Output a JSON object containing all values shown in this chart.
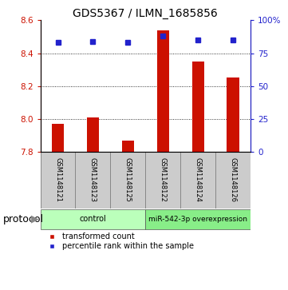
{
  "title": "GDS5367 / ILMN_1685856",
  "samples": [
    "GSM1148121",
    "GSM1148123",
    "GSM1148125",
    "GSM1148122",
    "GSM1148124",
    "GSM1148126"
  ],
  "transformed_count": [
    7.97,
    8.01,
    7.87,
    8.54,
    8.35,
    8.25
  ],
  "percentile_rank": [
    83,
    84,
    83,
    88,
    85,
    85
  ],
  "ylim_left": [
    7.8,
    8.6
  ],
  "ylim_right": [
    0,
    100
  ],
  "yticks_left": [
    7.8,
    8.0,
    8.2,
    8.4,
    8.6
  ],
  "yticks_right": [
    0,
    25,
    50,
    75,
    100
  ],
  "bar_color": "#cc1100",
  "dot_color": "#2222cc",
  "bar_bottom": 7.8,
  "bar_width": 0.35,
  "groups": [
    {
      "label": "control",
      "start": 0,
      "end": 3,
      "color": "#bbffbb"
    },
    {
      "label": "miR-542-3p overexpression",
      "start": 3,
      "end": 6,
      "color": "#88ee88"
    }
  ],
  "sample_box_color": "#cccccc",
  "sample_box_edge": "#888888",
  "title_fontsize": 10,
  "tick_fontsize": 7.5,
  "sample_fontsize": 6.0,
  "protocol_fontsize": 9,
  "group_fontsize": 7.0,
  "legend_fontsize": 7.0,
  "axis_color_left": "#cc1100",
  "axis_color_right": "#2222cc",
  "grid_color": "#000000",
  "protocol_label": "protocol",
  "legend_items": [
    {
      "color": "#cc1100",
      "label": "transformed count"
    },
    {
      "color": "#2222cc",
      "label": "percentile rank within the sample"
    }
  ]
}
